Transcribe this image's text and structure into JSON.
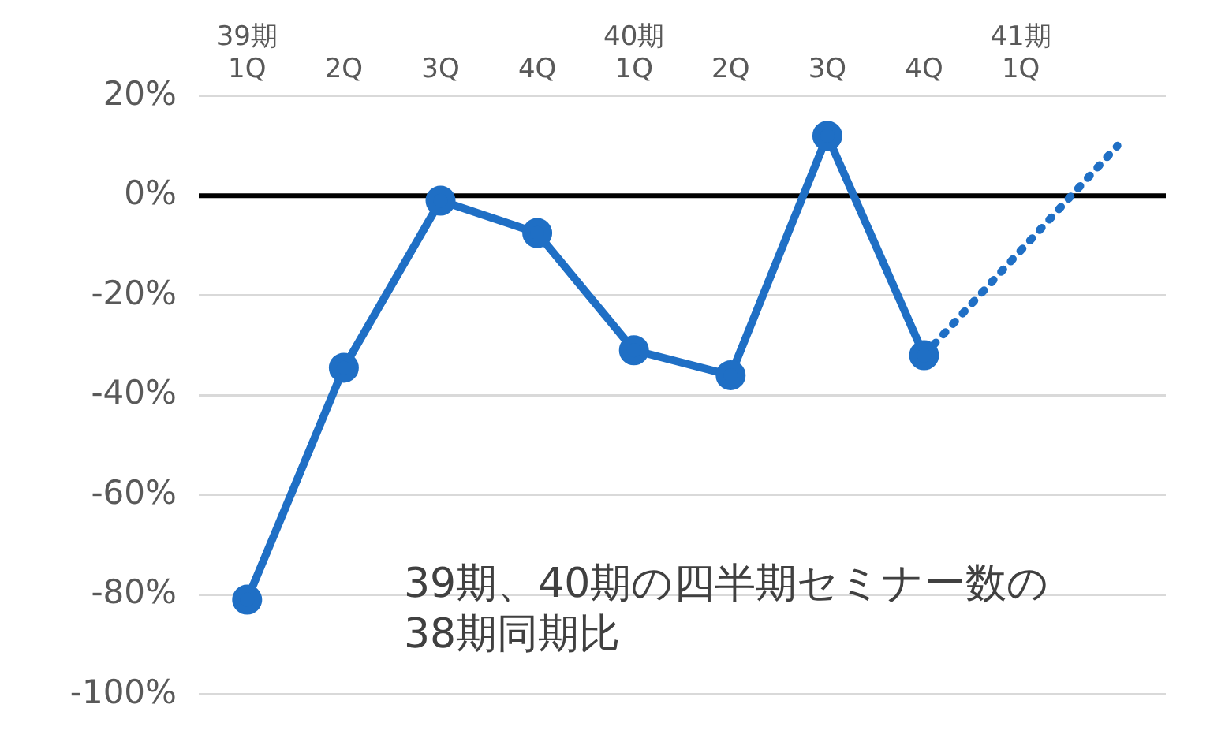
{
  "chart_data": {
    "type": "line",
    "categories": [
      "39期\n1Q",
      "2Q",
      "3Q",
      "4Q",
      "40期\n1Q",
      "2Q",
      "3Q",
      "4Q",
      "41期\n1Q",
      null
    ],
    "series": [
      {
        "color": "#1f6fc5",
        "values": [
          -81,
          -34.5,
          -1,
          -7.5,
          -31,
          -36,
          12,
          -32,
          null,
          null
        ],
        "marker": "circle",
        "line_style": "solid"
      },
      {
        "color": "#1f6fc5",
        "values": [
          null,
          null,
          null,
          null,
          null,
          null,
          null,
          -32,
          -11,
          10
        ],
        "marker": "none",
        "line_style": "dotted"
      }
    ],
    "ylim": [
      -100,
      20
    ],
    "yticks": [
      {
        "value": -100,
        "label": "-100%"
      },
      {
        "value": -80,
        "label": "-80%"
      },
      {
        "value": -60,
        "label": "-60%"
      },
      {
        "value": -40,
        "label": "-40%"
      },
      {
        "value": -20,
        "label": "-20%"
      },
      {
        "value": 0,
        "label": "0%"
      },
      {
        "value": 20,
        "label": "20%"
      }
    ],
    "grid": "y",
    "legend": false,
    "ref_lines": [
      {
        "axis": "y",
        "value": 0,
        "label": null,
        "color": "#000000"
      }
    ],
    "annotations": [
      "39期、40期の四半期セミナー数の\n38期同期比"
    ]
  }
}
